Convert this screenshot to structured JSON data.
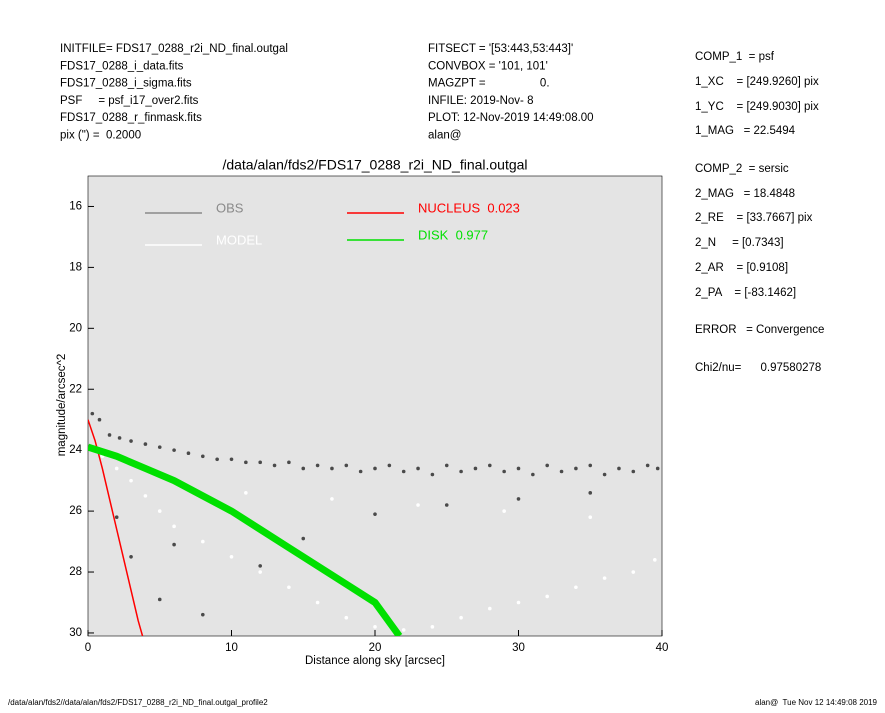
{
  "header": {
    "left": [
      "INITFILE= FDS17_0288_r2i_ND_final.outgal",
      "FDS17_0288_i_data.fits",
      "FDS17_0288_i_sigma.fits",
      "PSF     = psf_i17_over2.fits",
      "FDS17_0288_r_finmask.fits",
      "pix (\") =  0.2000"
    ],
    "middle": [
      "FITSECT = '[53:443,53:443]'",
      "CONVBOX = '101, 101'",
      "MAGZPT =                 0.",
      "INFILE: 2019-Nov- 8",
      "PLOT: 12-Nov-2019 14:49:08.00",
      "alan@"
    ]
  },
  "right_panel": [
    "COMP_1  = psf",
    "1_XC    = [249.9260] pix",
    "1_YC    = [249.9030] pix",
    "1_MAG   = 22.5494",
    "COMP_2  = sersic",
    "2_MAG   = 18.4848",
    "2_RE    = [33.7667] pix",
    "2_N     = [0.7343]",
    "2_AR    = [0.9108]",
    "2_PA    = [-83.1462]",
    "ERROR   = Convergence",
    "Chi2/nu=      0.97580278"
  ],
  "footer": {
    "left": "/data/alan/fds2//data/alan/fds2/FDS17_0288_r2i_ND_final.outgal_profile2",
    "right": "alan@  Tue Nov 12 14:49:08 2019"
  },
  "chart_data": {
    "type": "scatter",
    "title": "/data/alan/fds2/FDS17_0288_r2i_ND_final.outgal",
    "xlabel": "Distance along sky [arcsec]",
    "ylabel": "magnitude/arcsec^2",
    "xlim": [
      0,
      40
    ],
    "ylim": [
      30.1,
      15
    ],
    "xticks": [
      0,
      10,
      20,
      30,
      40
    ],
    "yticks": [
      16,
      18,
      20,
      22,
      24,
      26,
      28,
      30
    ],
    "grid": false,
    "series": [
      {
        "name": "OBS",
        "color": "#4a4a4a",
        "legend_color": "#8a8a8a",
        "mode": "points",
        "x": [
          0.3,
          0.8,
          1.5,
          2.2,
          3,
          4,
          5,
          6,
          7,
          8,
          9,
          10,
          11,
          12,
          13,
          14,
          15,
          16,
          17,
          18,
          19,
          20,
          21,
          22,
          23,
          24,
          25,
          26,
          27,
          28,
          29,
          30,
          31,
          32,
          33,
          34,
          35,
          36,
          37,
          38,
          39,
          39.7,
          3,
          5,
          8,
          12,
          15,
          20,
          25,
          30,
          35,
          2,
          6
        ],
        "values": [
          22.8,
          23.0,
          23.5,
          23.6,
          23.7,
          23.8,
          23.9,
          24.0,
          24.1,
          24.2,
          24.3,
          24.3,
          24.4,
          24.4,
          24.5,
          24.4,
          24.6,
          24.5,
          24.6,
          24.5,
          24.7,
          24.6,
          24.5,
          24.7,
          24.6,
          24.8,
          24.5,
          24.7,
          24.6,
          24.5,
          24.7,
          24.6,
          24.8,
          24.5,
          24.7,
          24.6,
          24.5,
          24.8,
          24.6,
          24.7,
          24.5,
          24.6,
          27.5,
          28.9,
          29.4,
          27.8,
          26.9,
          26.1,
          25.8,
          25.6,
          25.4,
          26.2,
          27.1
        ]
      },
      {
        "name": "MODEL",
        "color": "#ffffff",
        "legend_color": "#ffffff",
        "mode": "points",
        "x": [
          1,
          2,
          3,
          4,
          5,
          6,
          8,
          10,
          12,
          14,
          16,
          18,
          20,
          22,
          24,
          26,
          28,
          30,
          32,
          34,
          36,
          38,
          39.5,
          7,
          11,
          17,
          23,
          29,
          35
        ],
        "values": [
          24.2,
          24.6,
          25.0,
          25.5,
          26.0,
          26.5,
          27.0,
          27.5,
          28.0,
          28.5,
          29.0,
          29.5,
          29.8,
          29.9,
          29.8,
          29.5,
          29.2,
          29.0,
          28.8,
          28.5,
          28.2,
          28.0,
          27.6,
          25.2,
          25.4,
          25.6,
          25.8,
          26.0,
          26.2
        ]
      },
      {
        "name": "NUCLEUS  0.023",
        "color": "#ff0000",
        "legend_color": "#ff0000",
        "mode": "line",
        "x": [
          0,
          0.5,
          1,
          1.5,
          2,
          2.5,
          3,
          3.5,
          3.8
        ],
        "values": [
          23.0,
          23.7,
          24.6,
          25.6,
          26.6,
          27.6,
          28.6,
          29.6,
          30.1
        ]
      },
      {
        "name": "DISK  0.977",
        "color": "#00e000",
        "legend_color": "#00e000",
        "mode": "band",
        "x": [
          0,
          2,
          4,
          6,
          8,
          10,
          12,
          14,
          16,
          18,
          20,
          21.7
        ],
        "values": [
          23.9,
          24.2,
          24.6,
          25.0,
          25.5,
          26.0,
          26.6,
          27.2,
          27.8,
          28.4,
          29.0,
          30.1
        ]
      }
    ]
  }
}
